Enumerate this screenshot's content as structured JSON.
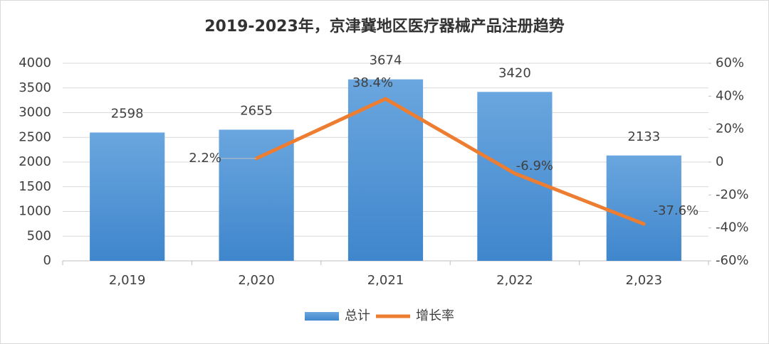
{
  "chart_data": {
    "type": "combo",
    "title": "2019-2023年，京津冀地区医疗器械产品注册趋势",
    "categories": [
      "2,019",
      "2,020",
      "2,021",
      "2,022",
      "2,023"
    ],
    "series": [
      {
        "name": "总计",
        "type": "bar",
        "color": "#5b9bd5",
        "values": [
          2598,
          2655,
          3674,
          3420,
          2133
        ]
      },
      {
        "name": "增长率",
        "type": "line",
        "axis": "y2",
        "color": "#ed7d31",
        "values": [
          null,
          2.2,
          38.4,
          -6.9,
          -37.6
        ],
        "value_labels": [
          null,
          "2.2%",
          "38.4%",
          "-6.9%",
          "-37.6%"
        ]
      }
    ],
    "ylim": [
      0,
      4000
    ],
    "yticks": [
      0,
      500,
      1000,
      1500,
      2000,
      2500,
      3000,
      3500,
      4000
    ],
    "y2lim": [
      -60,
      60
    ],
    "y2ticks": [
      {
        "value": -60,
        "label": "-60%"
      },
      {
        "value": -40,
        "label": "-40%"
      },
      {
        "value": -20,
        "label": "-20%"
      },
      0,
      {
        "value": 20,
        "label": "20%"
      },
      {
        "value": 40,
        "label": "40%"
      },
      {
        "value": 60,
        "label": "60%"
      }
    ],
    "grid": true,
    "legend": "bottom"
  }
}
